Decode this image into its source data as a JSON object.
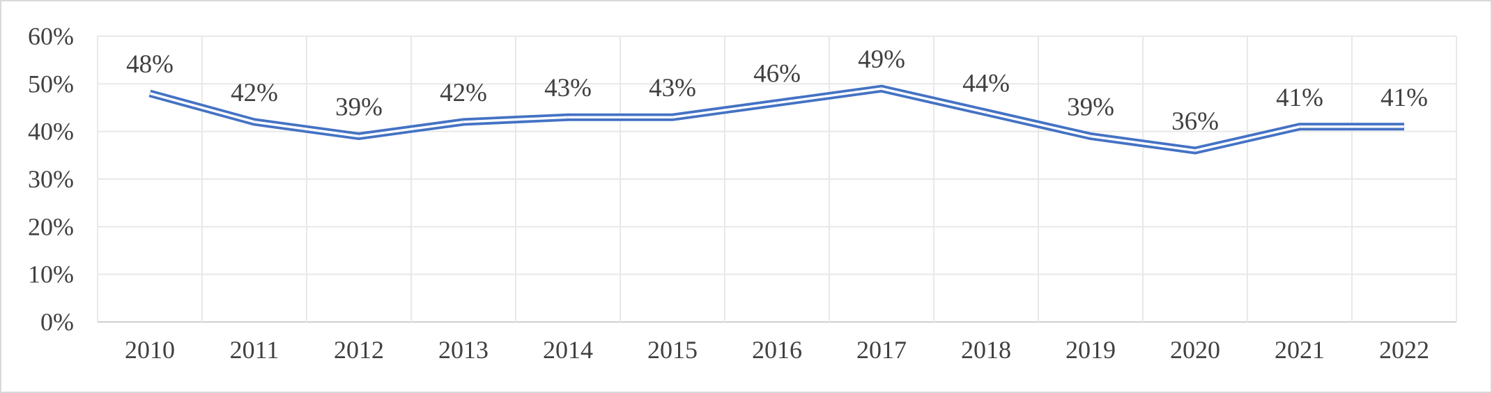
{
  "chart_data": {
    "type": "line",
    "title": "",
    "xlabel": "",
    "ylabel": "",
    "categories": [
      "2010",
      "2011",
      "2012",
      "2013",
      "2014",
      "2015",
      "2016",
      "2017",
      "2018",
      "2019",
      "2020",
      "2021",
      "2022"
    ],
    "series": [
      {
        "values": [
          48,
          42,
          39,
          42,
          43,
          43,
          46,
          49,
          44,
          39,
          36,
          41,
          41
        ]
      }
    ],
    "data_labels": [
      "48%",
      "42%",
      "39%",
      "42%",
      "43%",
      "43%",
      "46%",
      "49%",
      "44%",
      "39%",
      "36%",
      "41%",
      "41%"
    ],
    "ylim": [
      0,
      60
    ],
    "y_ticks": [
      0,
      10,
      20,
      30,
      40,
      50,
      60
    ],
    "y_tick_labels": [
      "0%",
      "10%",
      "20%",
      "30%",
      "40%",
      "50%",
      "60%"
    ],
    "grid": true,
    "legend": "none",
    "colors": {
      "line": "#4472c4",
      "grid": "#e8e8e8",
      "text": "#404040",
      "border": "#d9d9d9"
    }
  }
}
